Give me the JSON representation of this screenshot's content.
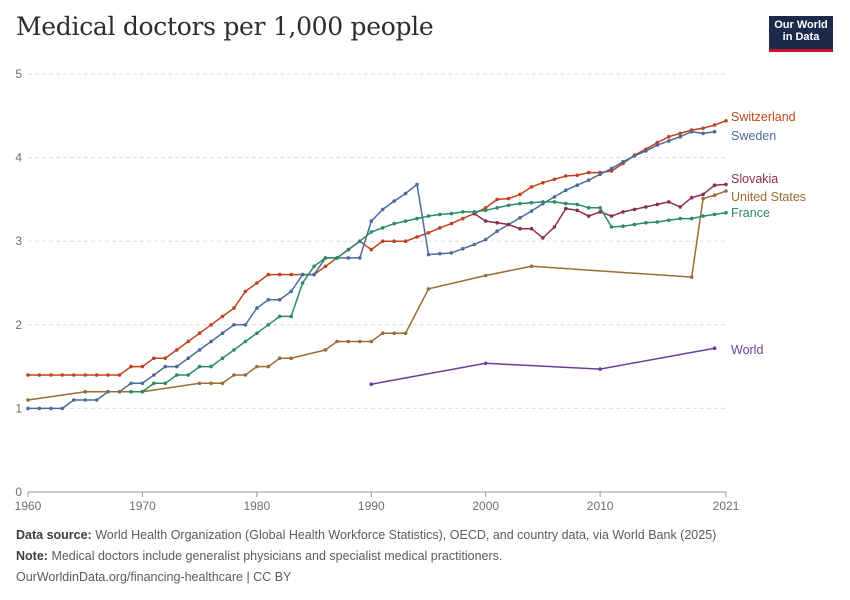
{
  "header": {
    "title": "Medical doctors per 1,000 people",
    "logo_line1": "Our World",
    "logo_line2": "in Data"
  },
  "footer": {
    "source_label": "Data source:",
    "source_text": "World Health Organization (Global Health Workforce Statistics), OECD, and country data, via World Bank (2025)",
    "note_label": "Note:",
    "note_text": "Medical doctors include generalist physicians and specialist medical practitioners.",
    "credit": "OurWorldinData.org/financing-healthcare | CC BY"
  },
  "chart_data": {
    "type": "line",
    "title": "Medical doctors per 1,000 people",
    "xlabel": "",
    "ylabel": "",
    "xlim": [
      1960,
      2021
    ],
    "ylim": [
      0,
      5
    ],
    "x_ticks": [
      1960,
      1970,
      1980,
      1990,
      2000,
      2010,
      2021
    ],
    "y_ticks": [
      0,
      1,
      2,
      3,
      4,
      5
    ],
    "grid": true,
    "legend": "right, labels at line ends",
    "series": [
      {
        "name": "Switzerland",
        "color": "#c0431e",
        "points": [
          [
            1960,
            1.4
          ],
          [
            1961,
            1.4
          ],
          [
            1962,
            1.4
          ],
          [
            1963,
            1.4
          ],
          [
            1964,
            1.4
          ],
          [
            1965,
            1.4
          ],
          [
            1966,
            1.4
          ],
          [
            1967,
            1.4
          ],
          [
            1968,
            1.4
          ],
          [
            1969,
            1.5
          ],
          [
            1970,
            1.5
          ],
          [
            1971,
            1.6
          ],
          [
            1972,
            1.6
          ],
          [
            1973,
            1.7
          ],
          [
            1974,
            1.8
          ],
          [
            1975,
            1.9
          ],
          [
            1976,
            2.0
          ],
          [
            1977,
            2.1
          ],
          [
            1978,
            2.2
          ],
          [
            1979,
            2.4
          ],
          [
            1980,
            2.5
          ],
          [
            1981,
            2.6
          ],
          [
            1982,
            2.6
          ],
          [
            1983,
            2.6
          ],
          [
            1984,
            2.6
          ],
          [
            1985,
            2.6
          ],
          [
            1986,
            2.7
          ],
          [
            1987,
            2.8
          ],
          [
            1988,
            2.9
          ],
          [
            1989,
            3.0
          ],
          [
            1990,
            2.9
          ],
          [
            1991,
            3.0
          ],
          [
            1992,
            3.0
          ],
          [
            1993,
            3.0
          ],
          [
            1994,
            3.05
          ],
          [
            1995,
            3.1
          ],
          [
            1996,
            3.16
          ],
          [
            1997,
            3.21
          ],
          [
            1998,
            3.27
          ],
          [
            1999,
            3.33
          ],
          [
            2000,
            3.4
          ],
          [
            2001,
            3.5
          ],
          [
            2002,
            3.51
          ],
          [
            2003,
            3.56
          ],
          [
            2004,
            3.65
          ],
          [
            2005,
            3.7
          ],
          [
            2006,
            3.74
          ],
          [
            2007,
            3.78
          ],
          [
            2008,
            3.79
          ],
          [
            2009,
            3.82
          ],
          [
            2010,
            3.82
          ],
          [
            2011,
            3.84
          ],
          [
            2012,
            3.93
          ],
          [
            2013,
            4.03
          ],
          [
            2014,
            4.1
          ],
          [
            2015,
            4.18
          ],
          [
            2016,
            4.25
          ],
          [
            2017,
            4.29
          ],
          [
            2018,
            4.33
          ],
          [
            2019,
            4.35
          ],
          [
            2020,
            4.39
          ],
          [
            2021,
            4.44
          ]
        ]
      },
      {
        "name": "Sweden",
        "color": "#4c6a9c",
        "points": [
          [
            1960,
            1.0
          ],
          [
            1961,
            1.0
          ],
          [
            1962,
            1.0
          ],
          [
            1963,
            1.0
          ],
          [
            1964,
            1.1
          ],
          [
            1965,
            1.1
          ],
          [
            1966,
            1.1
          ],
          [
            1967,
            1.2
          ],
          [
            1968,
            1.2
          ],
          [
            1969,
            1.3
          ],
          [
            1970,
            1.3
          ],
          [
            1971,
            1.4
          ],
          [
            1972,
            1.5
          ],
          [
            1973,
            1.5
          ],
          [
            1974,
            1.6
          ],
          [
            1975,
            1.7
          ],
          [
            1976,
            1.8
          ],
          [
            1977,
            1.9
          ],
          [
            1978,
            2.0
          ],
          [
            1979,
            2.0
          ],
          [
            1980,
            2.2
          ],
          [
            1981,
            2.3
          ],
          [
            1982,
            2.3
          ],
          [
            1983,
            2.4
          ],
          [
            1984,
            2.6
          ],
          [
            1985,
            2.6
          ],
          [
            1986,
            2.8
          ],
          [
            1987,
            2.8
          ],
          [
            1988,
            2.8
          ],
          [
            1989,
            2.8
          ],
          [
            1990,
            3.24
          ],
          [
            1991,
            3.38
          ],
          [
            1992,
            3.48
          ],
          [
            1993,
            3.57
          ],
          [
            1994,
            3.68
          ],
          [
            1995,
            2.84
          ],
          [
            1996,
            2.85
          ],
          [
            1997,
            2.86
          ],
          [
            1998,
            2.91
          ],
          [
            1999,
            2.96
          ],
          [
            2000,
            3.02
          ],
          [
            2001,
            3.12
          ],
          [
            2002,
            3.2
          ],
          [
            2003,
            3.28
          ],
          [
            2004,
            3.36
          ],
          [
            2005,
            3.45
          ],
          [
            2006,
            3.53
          ],
          [
            2007,
            3.61
          ],
          [
            2008,
            3.67
          ],
          [
            2009,
            3.73
          ],
          [
            2010,
            3.8
          ],
          [
            2011,
            3.87
          ],
          [
            2012,
            3.95
          ],
          [
            2013,
            4.02
          ],
          [
            2014,
            4.08
          ],
          [
            2015,
            4.15
          ],
          [
            2016,
            4.2
          ],
          [
            2017,
            4.25
          ],
          [
            2018,
            4.31
          ],
          [
            2019,
            4.29
          ],
          [
            2020,
            4.31
          ]
        ]
      },
      {
        "name": "Slovakia",
        "color": "#8c3049",
        "points": [
          [
            1999,
            3.33
          ],
          [
            2000,
            3.24
          ],
          [
            2001,
            3.22
          ],
          [
            2002,
            3.2
          ],
          [
            2003,
            3.15
          ],
          [
            2004,
            3.15
          ],
          [
            2005,
            3.04
          ],
          [
            2006,
            3.17
          ],
          [
            2007,
            3.39
          ],
          [
            2008,
            3.37
          ],
          [
            2009,
            3.3
          ],
          [
            2010,
            3.35
          ],
          [
            2011,
            3.3
          ],
          [
            2012,
            3.35
          ],
          [
            2013,
            3.38
          ],
          [
            2014,
            3.41
          ],
          [
            2015,
            3.44
          ],
          [
            2016,
            3.47
          ],
          [
            2017,
            3.41
          ],
          [
            2018,
            3.52
          ],
          [
            2019,
            3.56
          ],
          [
            2020,
            3.67
          ],
          [
            2021,
            3.68
          ]
        ]
      },
      {
        "name": "United States",
        "color": "#9a6c35",
        "points": [
          [
            1960,
            1.1
          ],
          [
            1965,
            1.2
          ],
          [
            1970,
            1.2
          ],
          [
            1975,
            1.3
          ],
          [
            1976,
            1.3
          ],
          [
            1977,
            1.3
          ],
          [
            1978,
            1.4
          ],
          [
            1979,
            1.4
          ],
          [
            1980,
            1.5
          ],
          [
            1981,
            1.5
          ],
          [
            1982,
            1.6
          ],
          [
            1983,
            1.6
          ],
          [
            1986,
            1.7
          ],
          [
            1987,
            1.8
          ],
          [
            1988,
            1.8
          ],
          [
            1989,
            1.8
          ],
          [
            1990,
            1.8
          ],
          [
            1991,
            1.9
          ],
          [
            1992,
            1.9
          ],
          [
            1993,
            1.9
          ],
          [
            1995,
            2.43
          ],
          [
            2000,
            2.59
          ],
          [
            2004,
            2.7
          ],
          [
            2018,
            2.57
          ],
          [
            2019,
            3.51
          ],
          [
            2020,
            3.55
          ],
          [
            2021,
            3.6
          ]
        ]
      },
      {
        "name": "France",
        "color": "#2b8a6a",
        "points": [
          [
            1969,
            1.2
          ],
          [
            1970,
            1.2
          ],
          [
            1971,
            1.3
          ],
          [
            1972,
            1.3
          ],
          [
            1973,
            1.4
          ],
          [
            1974,
            1.4
          ],
          [
            1975,
            1.5
          ],
          [
            1976,
            1.5
          ],
          [
            1977,
            1.6
          ],
          [
            1978,
            1.7
          ],
          [
            1979,
            1.8
          ],
          [
            1980,
            1.9
          ],
          [
            1981,
            2.0
          ],
          [
            1982,
            2.1
          ],
          [
            1983,
            2.1
          ],
          [
            1984,
            2.5
          ],
          [
            1985,
            2.7
          ],
          [
            1986,
            2.8
          ],
          [
            1987,
            2.8
          ],
          [
            1988,
            2.9
          ],
          [
            1989,
            3.0
          ],
          [
            1990,
            3.11
          ],
          [
            1991,
            3.16
          ],
          [
            1992,
            3.21
          ],
          [
            1993,
            3.24
          ],
          [
            1994,
            3.27
          ],
          [
            1995,
            3.3
          ],
          [
            1996,
            3.32
          ],
          [
            1997,
            3.33
          ],
          [
            1998,
            3.35
          ],
          [
            1999,
            3.35
          ],
          [
            2000,
            3.37
          ],
          [
            2001,
            3.4
          ],
          [
            2002,
            3.43
          ],
          [
            2003,
            3.45
          ],
          [
            2004,
            3.46
          ],
          [
            2005,
            3.47
          ],
          [
            2006,
            3.47
          ],
          [
            2007,
            3.45
          ],
          [
            2008,
            3.44
          ],
          [
            2009,
            3.4
          ],
          [
            2010,
            3.4
          ],
          [
            2011,
            3.17
          ],
          [
            2012,
            3.18
          ],
          [
            2013,
            3.2
          ],
          [
            2014,
            3.22
          ],
          [
            2015,
            3.23
          ],
          [
            2016,
            3.25
          ],
          [
            2017,
            3.27
          ],
          [
            2018,
            3.27
          ],
          [
            2019,
            3.3
          ],
          [
            2020,
            3.32
          ],
          [
            2021,
            3.34
          ]
        ]
      },
      {
        "name": "World",
        "color": "#6a3d9a",
        "points": [
          [
            1990,
            1.29
          ],
          [
            2000,
            1.54
          ],
          [
            2010,
            1.47
          ],
          [
            2020,
            1.72
          ]
        ]
      }
    ]
  }
}
